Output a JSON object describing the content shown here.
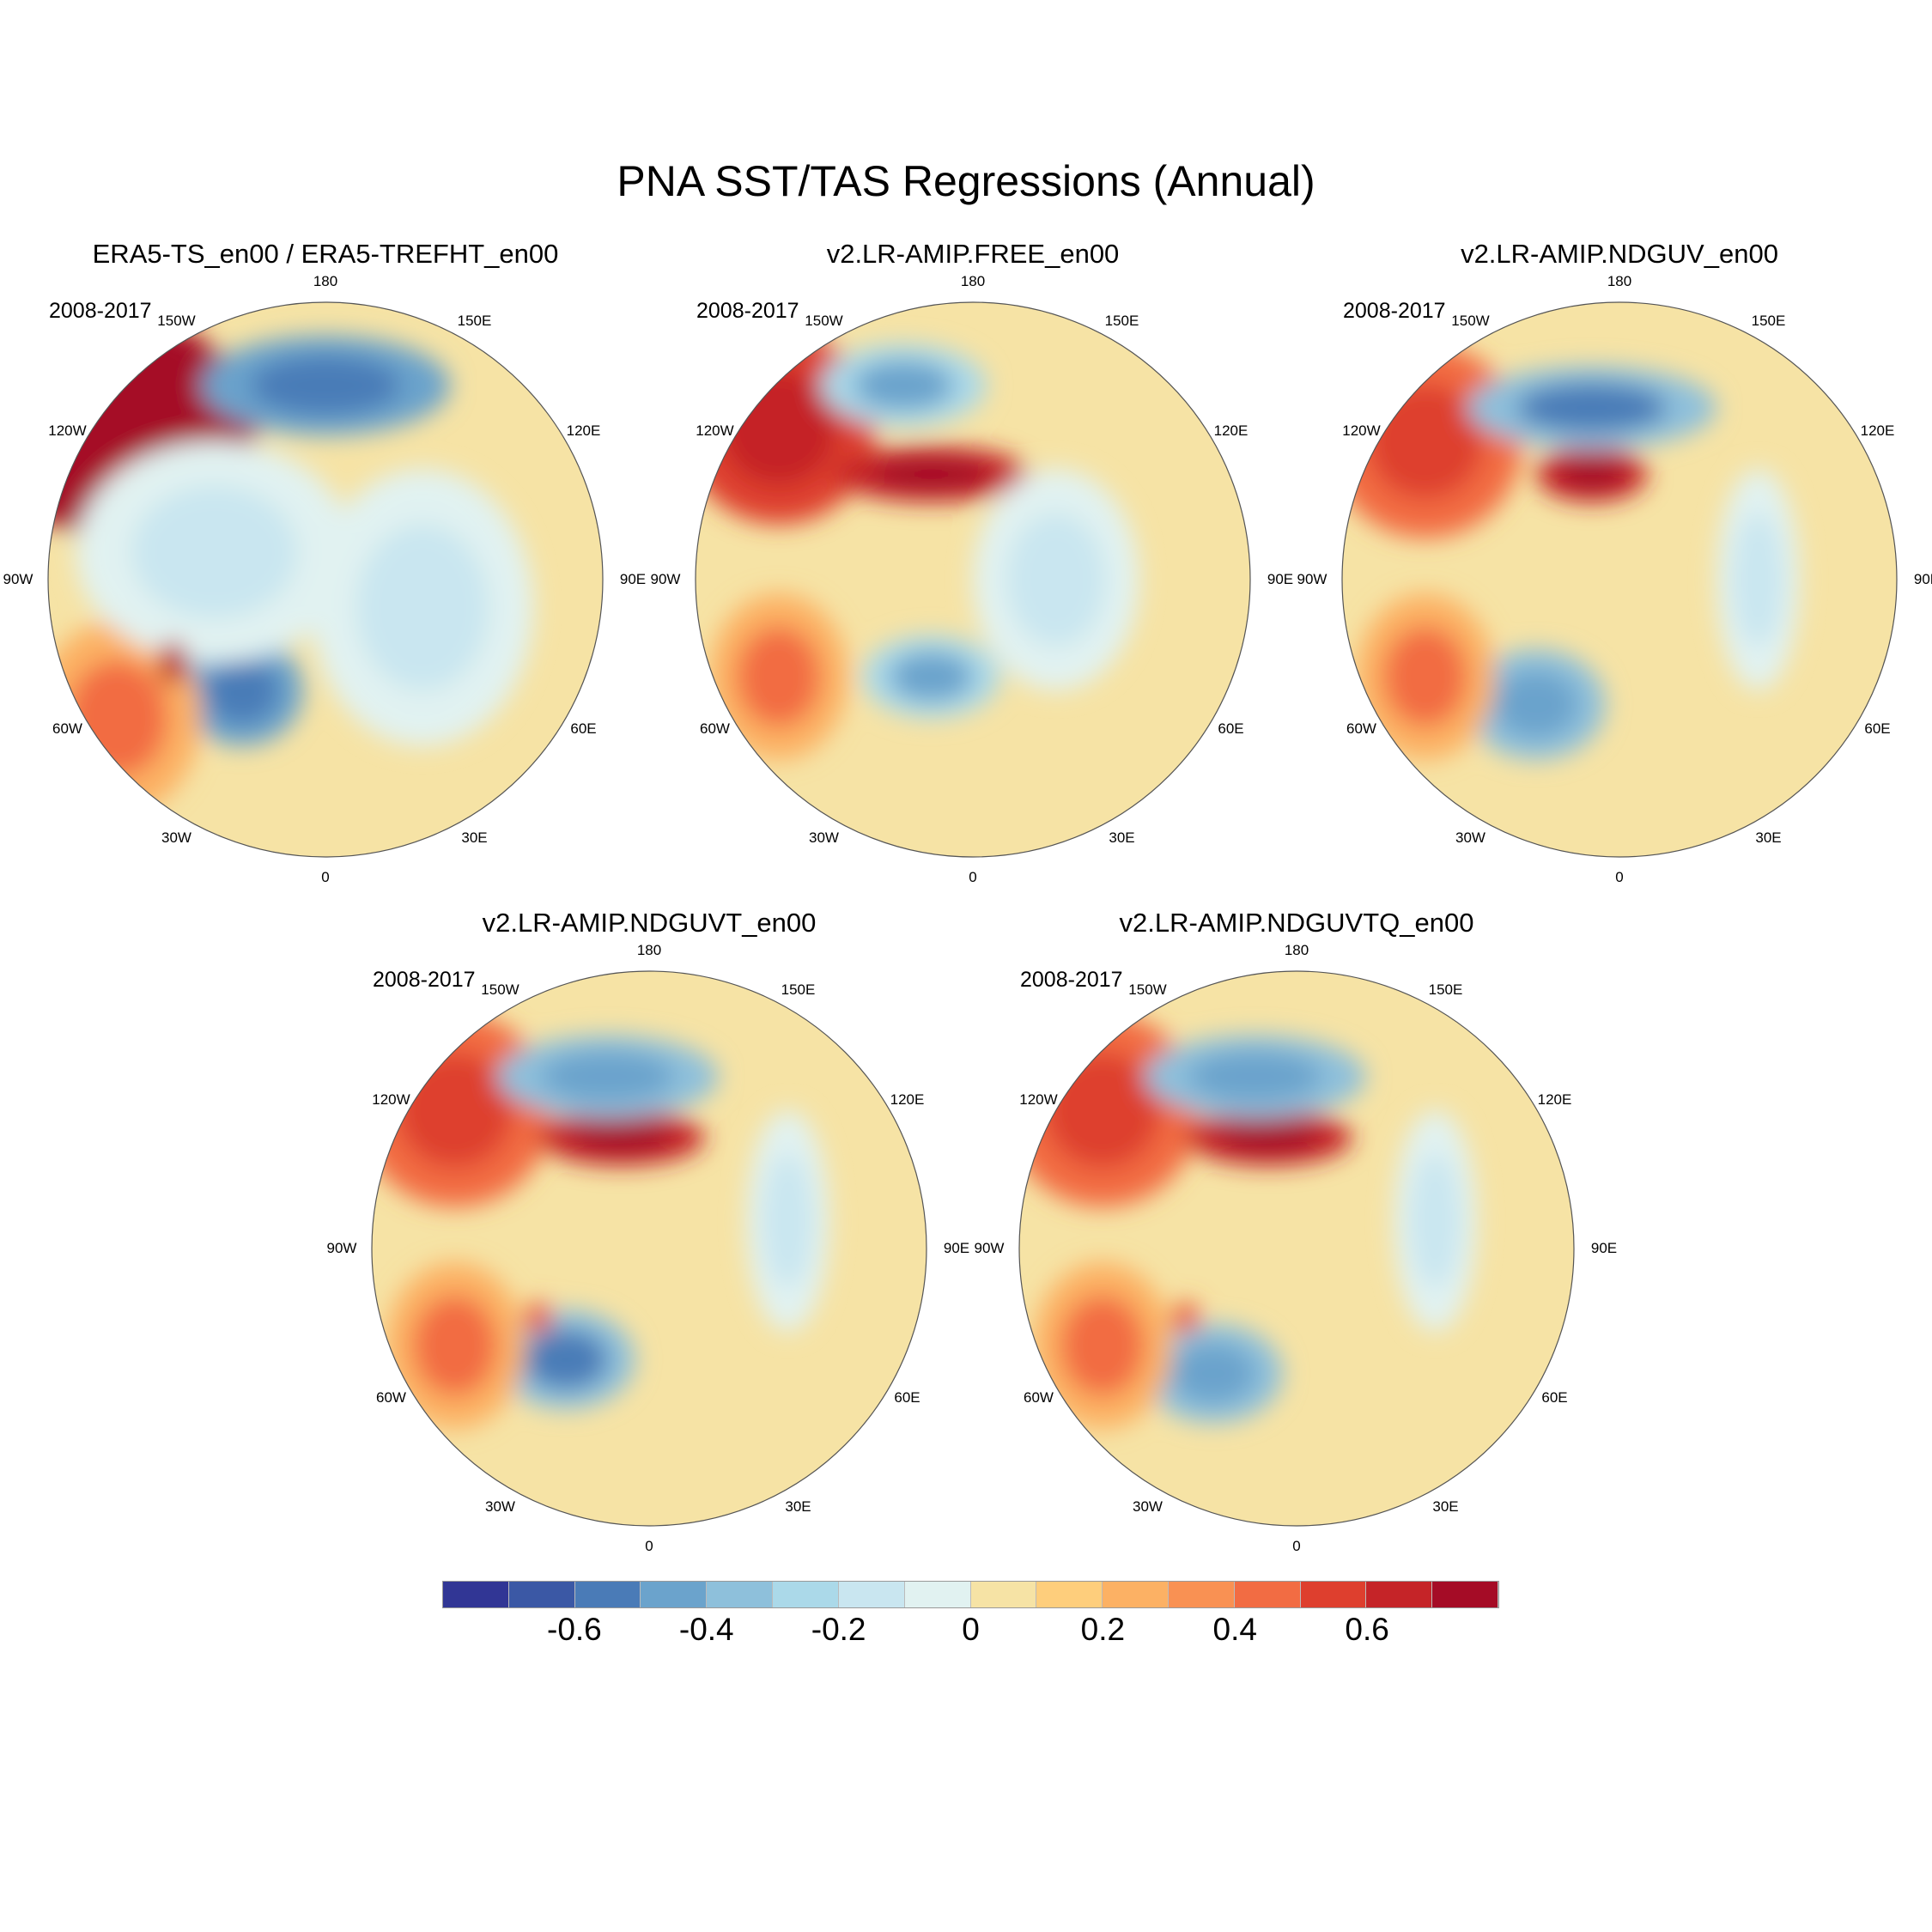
{
  "chart_data": {
    "type": "heatmap",
    "projection": "north-polar-stereographic",
    "title": "PNA SST/TAS Regressions (Annual)",
    "panels": [
      {
        "title": "ERA5-TS_en00 / ERA5-TREFHT_en00",
        "period": "2008-2017"
      },
      {
        "title": "v2.LR-AMIP.FREE_en00",
        "period": "2008-2017"
      },
      {
        "title": "v2.LR-AMIP.NDGUV_en00",
        "period": "2008-2017"
      },
      {
        "title": "v2.LR-AMIP.NDGUVT_en00",
        "period": "2008-2017"
      },
      {
        "title": "v2.LR-AMIP.NDGUVTQ_en00",
        "period": "2008-2017"
      }
    ],
    "longitude_labels": [
      {
        "text": "0",
        "lon": 0
      },
      {
        "text": "30E",
        "lon": 30
      },
      {
        "text": "60E",
        "lon": 60
      },
      {
        "text": "90E",
        "lon": 90
      },
      {
        "text": "120E",
        "lon": 120
      },
      {
        "text": "150E",
        "lon": 150
      },
      {
        "text": "180",
        "lon": 180
      },
      {
        "text": "150W",
        "lon": -150
      },
      {
        "text": "120W",
        "lon": -120
      },
      {
        "text": "90W",
        "lon": -90
      },
      {
        "text": "60W",
        "lon": -60
      },
      {
        "text": "30W",
        "lon": -30
      }
    ],
    "colorbar": {
      "levels": [
        -0.7,
        -0.6,
        -0.5,
        -0.4,
        -0.3,
        -0.2,
        -0.1,
        0,
        0.1,
        0.2,
        0.3,
        0.4,
        0.5,
        0.6,
        0.7
      ],
      "tick_labels": [
        "-0.6",
        "-0.4",
        "-0.2",
        "0",
        "0.2",
        "0.4",
        "0.6"
      ],
      "tick_values": [
        -0.6,
        -0.4,
        -0.2,
        0,
        0.2,
        0.4,
        0.6
      ],
      "colors": [
        "#313695",
        "#3b58a5",
        "#4a7bb7",
        "#6ba3cc",
        "#8ec0db",
        "#abd9e9",
        "#c9e6f0",
        "#e1f2f1",
        "#f6e3a5",
        "#fece7c",
        "#fcb164",
        "#f99153",
        "#f26c43",
        "#de3f2e",
        "#c52428",
        "#a50c26"
      ]
    }
  }
}
